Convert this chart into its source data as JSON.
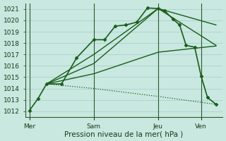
{
  "bg_color": "#c8e8e0",
  "grid_color": "#a8cccc",
  "line_color": "#1a5c1a",
  "ylim": [
    1011.5,
    1021.5
  ],
  "yticks": [
    1012,
    1013,
    1014,
    1015,
    1016,
    1017,
    1018,
    1019,
    1020,
    1021
  ],
  "xlabel": "Pression niveau de la mer( hPa )",
  "xlabel_fontsize": 7.5,
  "tick_fontsize": 6.5,
  "xtick_labels": [
    "Mer",
    "Sam",
    "Jeu",
    "Ven"
  ],
  "xtick_positions": [
    0,
    3,
    6,
    8
  ],
  "xlim": [
    -0.2,
    9.0
  ],
  "vlines_x": [
    0,
    3,
    6,
    8
  ],
  "main_line": {
    "x": [
      0,
      0.4,
      0.8,
      1.5,
      2.2,
      3.0,
      3.5,
      4.0,
      4.5,
      5.0,
      5.5,
      6.0,
      6.3,
      6.7,
      7.0,
      7.3,
      7.7,
      8.0,
      8.3,
      8.7
    ],
    "y": [
      1012.05,
      1013.1,
      1014.4,
      1014.4,
      1016.7,
      1018.3,
      1018.3,
      1019.5,
      1019.6,
      1019.85,
      1021.1,
      1021.05,
      1020.85,
      1020.1,
      1019.6,
      1017.8,
      1017.65,
      1015.1,
      1013.2,
      1012.6
    ],
    "lw": 1.2,
    "marker": "D",
    "ms": 2.5
  },
  "fan_lines": [
    {
      "x": [
        0.8,
        3.0,
        6.0,
        8.7
      ],
      "y": [
        1014.4,
        1017.0,
        1021.05,
        1019.6
      ],
      "lw": 1.0,
      "style": "-"
    },
    {
      "x": [
        0.8,
        3.0,
        6.0,
        8.7
      ],
      "y": [
        1014.4,
        1016.2,
        1021.05,
        1017.8
      ],
      "lw": 1.0,
      "style": "-"
    },
    {
      "x": [
        0.8,
        3.0,
        6.0,
        8.7
      ],
      "y": [
        1014.4,
        1015.3,
        1017.2,
        1017.75
      ],
      "lw": 1.0,
      "style": "-"
    },
    {
      "x": [
        0.8,
        3.0,
        6.0,
        8.7
      ],
      "y": [
        1014.4,
        1014.0,
        1013.3,
        1012.6
      ],
      "lw": 0.9,
      "style": ":"
    }
  ],
  "figsize": [
    3.2,
    2.0
  ],
  "dpi": 100
}
